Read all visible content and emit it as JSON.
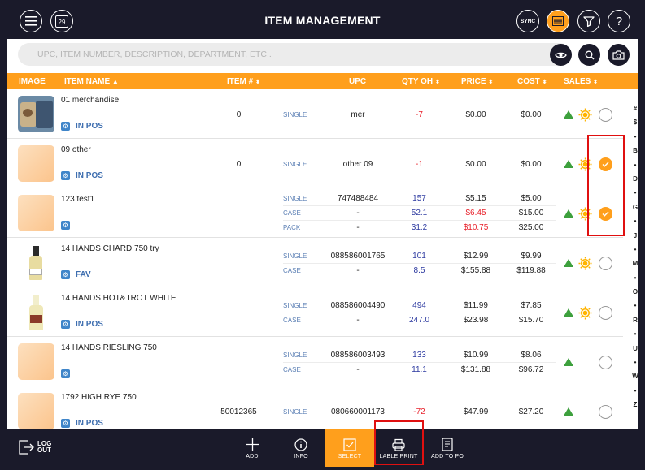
{
  "header": {
    "title": "ITEM MANAGEMENT",
    "calendar_day": "29",
    "sync_label": "SYNC"
  },
  "search": {
    "placeholder": "UPC, ITEM NUMBER, DESCRIPTION, DEPARTMENT, ETC.."
  },
  "columns": {
    "image": "IMAGE",
    "item_name": "ITEM NAME",
    "item_no": "ITEM #",
    "upc": "UPC",
    "qty": "QTY OH",
    "price": "PRICE",
    "cost": "COST",
    "sales": "SALES"
  },
  "rows": [
    {
      "name": "01 merchandise",
      "tag": "IN POS",
      "item_no": "0",
      "selected": false,
      "sun": true,
      "lines": [
        {
          "type": "SINGLE",
          "upc": "mer",
          "qty": "-7",
          "qty_color": "red",
          "price": "$0.00",
          "price_color": "normal",
          "cost": "$0.00"
        }
      ]
    },
    {
      "name": "09 other",
      "tag": "IN POS",
      "item_no": "0",
      "selected": true,
      "sun": true,
      "lines": [
        {
          "type": "SINGLE",
          "upc": "other 09",
          "qty": "-1",
          "qty_color": "red",
          "price": "$0.00",
          "price_color": "normal",
          "cost": "$0.00"
        }
      ]
    },
    {
      "name": "123 test1",
      "tag": "",
      "item_no": "",
      "selected": true,
      "sun": true,
      "lines": [
        {
          "type": "SINGLE",
          "upc": "747488484",
          "qty": "157",
          "qty_color": "blue",
          "price": "$5.15",
          "price_color": "normal",
          "cost": "$5.00"
        },
        {
          "type": "CASE",
          "upc": "-",
          "qty": "52.1",
          "qty_color": "blue",
          "price": "$6.45",
          "price_color": "red",
          "cost": "$15.00"
        },
        {
          "type": "PACK",
          "upc": "-",
          "qty": "31.2",
          "qty_color": "blue",
          "price": "$10.75",
          "price_color": "red",
          "cost": "$25.00"
        }
      ]
    },
    {
      "name": "14 HANDS CHARD 750 try",
      "tag": "FAV",
      "item_no": "",
      "selected": false,
      "sun": true,
      "lines": [
        {
          "type": "SINGLE",
          "upc": "088586001765",
          "qty": "101",
          "qty_color": "blue",
          "price": "$12.99",
          "price_color": "normal",
          "cost": "$9.99"
        },
        {
          "type": "CASE",
          "upc": "-",
          "qty": "8.5",
          "qty_color": "blue",
          "price": "$155.88",
          "price_color": "normal",
          "cost": "$119.88"
        }
      ]
    },
    {
      "name": "14 HANDS HOT&TROT WHITE",
      "tag": "IN POS",
      "item_no": "",
      "selected": false,
      "sun": true,
      "lines": [
        {
          "type": "SINGLE",
          "upc": "088586004490",
          "qty": "494",
          "qty_color": "blue",
          "price": "$11.99",
          "price_color": "normal",
          "cost": "$7.85"
        },
        {
          "type": "CASE",
          "upc": "-",
          "qty": "247.0",
          "qty_color": "blue",
          "price": "$23.98",
          "price_color": "normal",
          "cost": "$15.70"
        }
      ]
    },
    {
      "name": "14 HANDS RIESLING 750",
      "tag": "",
      "item_no": "",
      "selected": false,
      "sun": false,
      "lines": [
        {
          "type": "SINGLE",
          "upc": "088586003493",
          "qty": "133",
          "qty_color": "blue",
          "price": "$10.99",
          "price_color": "normal",
          "cost": "$8.06"
        },
        {
          "type": "CASE",
          "upc": "-",
          "qty": "11.1",
          "qty_color": "blue",
          "price": "$131.88",
          "price_color": "normal",
          "cost": "$96.72"
        }
      ]
    },
    {
      "name": "1792 HIGH RYE 750",
      "tag": "IN POS",
      "item_no": "50012365",
      "selected": false,
      "sun": false,
      "lines": [
        {
          "type": "SINGLE",
          "upc": "080660001173",
          "qty": "-72",
          "qty_color": "red",
          "price": "$47.99",
          "price_color": "normal",
          "cost": "$27.20"
        }
      ]
    }
  ],
  "alphabet": [
    "#",
    "$",
    "•",
    "B",
    "•",
    "D",
    "•",
    "G",
    "•",
    "J",
    "•",
    "M",
    "•",
    "O",
    "•",
    "R",
    "•",
    "U",
    "•",
    "W",
    "•",
    "Z"
  ],
  "bottom": {
    "logout": "LOG OUT",
    "add": "ADD",
    "info": "INFO",
    "select": "SELECT",
    "label_print": "LABLE PRINT",
    "add_to_po": "ADD TO PO"
  },
  "colors": {
    "accent": "#ff9f1c",
    "dark": "#1a1a2a",
    "highlight": "#e01010"
  }
}
